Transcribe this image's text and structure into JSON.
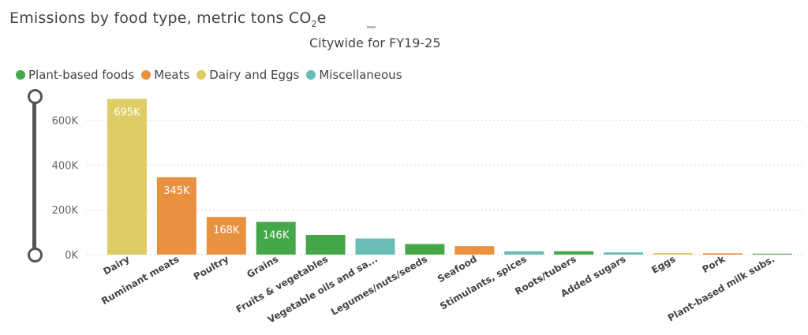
{
  "title_main": "Emissions by food type, metric tons CO",
  "title_sub": "2",
  "title_end": "e",
  "subtitle": "Citywide for FY19-25",
  "legend": [
    {
      "label": "Plant-based foods",
      "color": "#44a84a"
    },
    {
      "label": "Meats",
      "color": "#e8913f"
    },
    {
      "label": "Dairy and Eggs",
      "color": "#dfcc65"
    },
    {
      "label": "Miscellaneous",
      "color": "#6bbcb6"
    }
  ],
  "chart_data": {
    "type": "bar",
    "categories": [
      "Dairy",
      "Ruminant meats",
      "Poultry",
      "Grains",
      "Fruits & vegetables",
      "Vegetable oils and sa...",
      "Legumes/nuts/seeds",
      "Seafood",
      "Stimulants, spices",
      "Roots/tubers",
      "Added sugars",
      "Eggs",
      "Pork",
      "Plant-based milk subs."
    ],
    "values": [
      695000,
      345000,
      168000,
      146000,
      88000,
      72000,
      47000,
      38000,
      15000,
      15000,
      10000,
      7000,
      6000,
      4000
    ],
    "groups": [
      "Dairy and Eggs",
      "Meats",
      "Meats",
      "Plant-based foods",
      "Plant-based foods",
      "Miscellaneous",
      "Plant-based foods",
      "Meats",
      "Miscellaneous",
      "Plant-based foods",
      "Miscellaneous",
      "Dairy and Eggs",
      "Meats",
      "Plant-based foods"
    ],
    "data_labels": [
      "695K",
      "345K",
      "168K",
      "146K",
      "",
      "",
      "",
      "",
      "",
      "",
      "",
      "",
      "",
      ""
    ],
    "y_ticks": [
      0,
      200000,
      400000,
      600000
    ],
    "y_tick_labels": [
      "0K",
      "200K",
      "400K",
      "600K"
    ],
    "ylim": [
      0,
      700000
    ],
    "grid": true
  }
}
